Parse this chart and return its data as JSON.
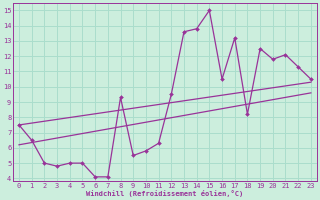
{
  "xlabel": "Windchill (Refroidissement éolien,°C)",
  "background_color": "#cceedd",
  "line_color": "#993399",
  "grid_color": "#aaddcc",
  "xlim": [
    -0.5,
    23.5
  ],
  "ylim": [
    3.8,
    15.5
  ],
  "xticks": [
    0,
    1,
    2,
    3,
    4,
    5,
    6,
    7,
    8,
    9,
    10,
    11,
    12,
    13,
    14,
    15,
    16,
    17,
    18,
    19,
    20,
    21,
    22,
    23
  ],
  "yticks": [
    4,
    5,
    6,
    7,
    8,
    9,
    10,
    11,
    12,
    13,
    14,
    15
  ],
  "curve_x": [
    0,
    1,
    2,
    3,
    4,
    5,
    6,
    7,
    8,
    9,
    10,
    11,
    12,
    13,
    14,
    15,
    16,
    17,
    18,
    19,
    20,
    21,
    22,
    23
  ],
  "curve_y": [
    7.5,
    6.5,
    5.0,
    4.8,
    5.0,
    5.0,
    4.1,
    4.1,
    9.3,
    5.5,
    5.8,
    6.3,
    9.5,
    13.6,
    13.8,
    15.0,
    10.5,
    13.2,
    8.2,
    12.5,
    11.8,
    12.1,
    11.3,
    10.5
  ],
  "line1_x": [
    0,
    23
  ],
  "line1_y": [
    7.5,
    10.3
  ],
  "line2_x": [
    0,
    23
  ],
  "line2_y": [
    6.2,
    9.6
  ]
}
